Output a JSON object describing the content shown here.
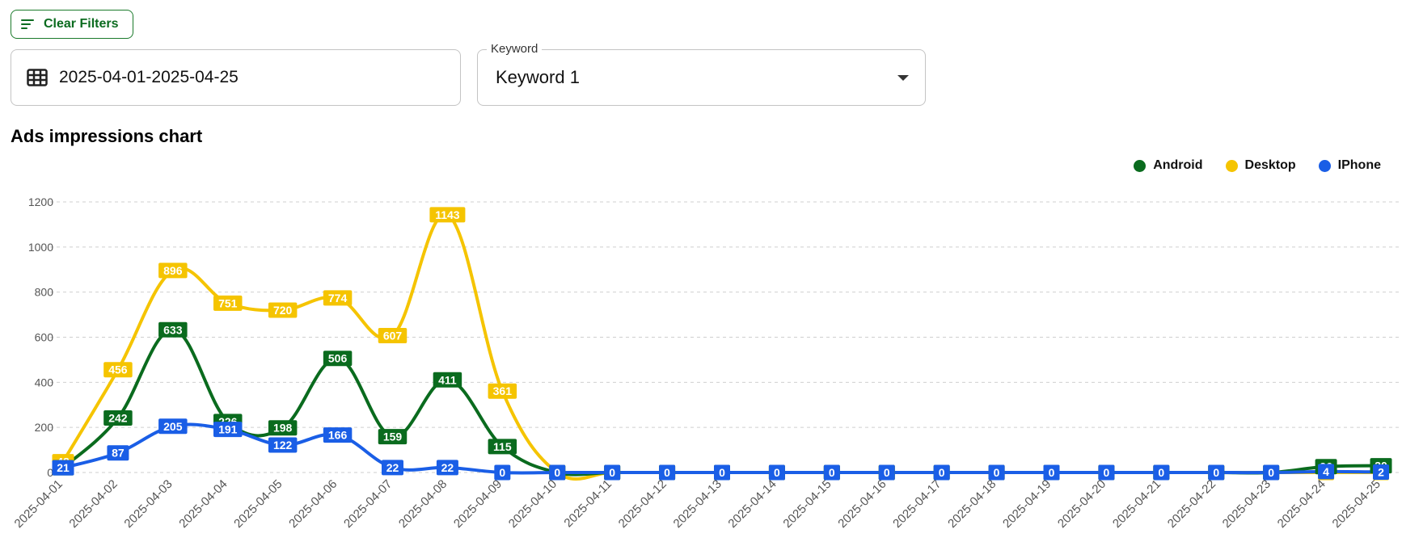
{
  "filters": {
    "clear_label": "Clear Filters",
    "date_range": "2025-04-01-2025-04-25",
    "keyword_label": "Keyword",
    "keyword_value": "Keyword 1"
  },
  "chart_data": {
    "type": "line",
    "title": "Ads impressions chart",
    "xlabel": "",
    "ylabel": "",
    "ylim": [
      0,
      1200
    ],
    "yticks": [
      0,
      200,
      400,
      600,
      800,
      1000,
      1200
    ],
    "grid": true,
    "legend_position": "top-right",
    "categories": [
      "2025-04-01",
      "2025-04-02",
      "2025-04-03",
      "2025-04-04",
      "2025-04-05",
      "2025-04-06",
      "2025-04-07",
      "2025-04-08",
      "2025-04-09",
      "2025-04-10",
      "2025-04-11",
      "2025-04-12",
      "2025-04-13",
      "2025-04-14",
      "2025-04-15",
      "2025-04-16",
      "2025-04-17",
      "2025-04-18",
      "2025-04-19",
      "2025-04-20",
      "2025-04-21",
      "2025-04-22",
      "2025-04-23",
      "2025-04-24",
      "2025-04-25"
    ],
    "series": [
      {
        "name": "Desktop",
        "color": "#f5c400",
        "label_text_color": "#ffffff",
        "values": [
          48,
          456,
          896,
          751,
          720,
          774,
          607,
          1143,
          361,
          0,
          0,
          0,
          0,
          0,
          0,
          0,
          0,
          0,
          0,
          0,
          0,
          0,
          0,
          0,
          0
        ]
      },
      {
        "name": "Android",
        "color": "#0a6b1e",
        "label_text_color": "#ffffff",
        "values": [
          21,
          242,
          633,
          226,
          198,
          506,
          159,
          411,
          115,
          0,
          0,
          0,
          0,
          0,
          0,
          0,
          0,
          0,
          0,
          0,
          0,
          0,
          0,
          26,
          30
        ]
      },
      {
        "name": "IPhone",
        "color": "#1a5ee6",
        "label_text_color": "#ffffff",
        "values": [
          21,
          87,
          205,
          191,
          122,
          166,
          22,
          22,
          0,
          0,
          0,
          0,
          0,
          0,
          0,
          0,
          0,
          0,
          0,
          0,
          0,
          0,
          0,
          4,
          2
        ]
      }
    ]
  }
}
